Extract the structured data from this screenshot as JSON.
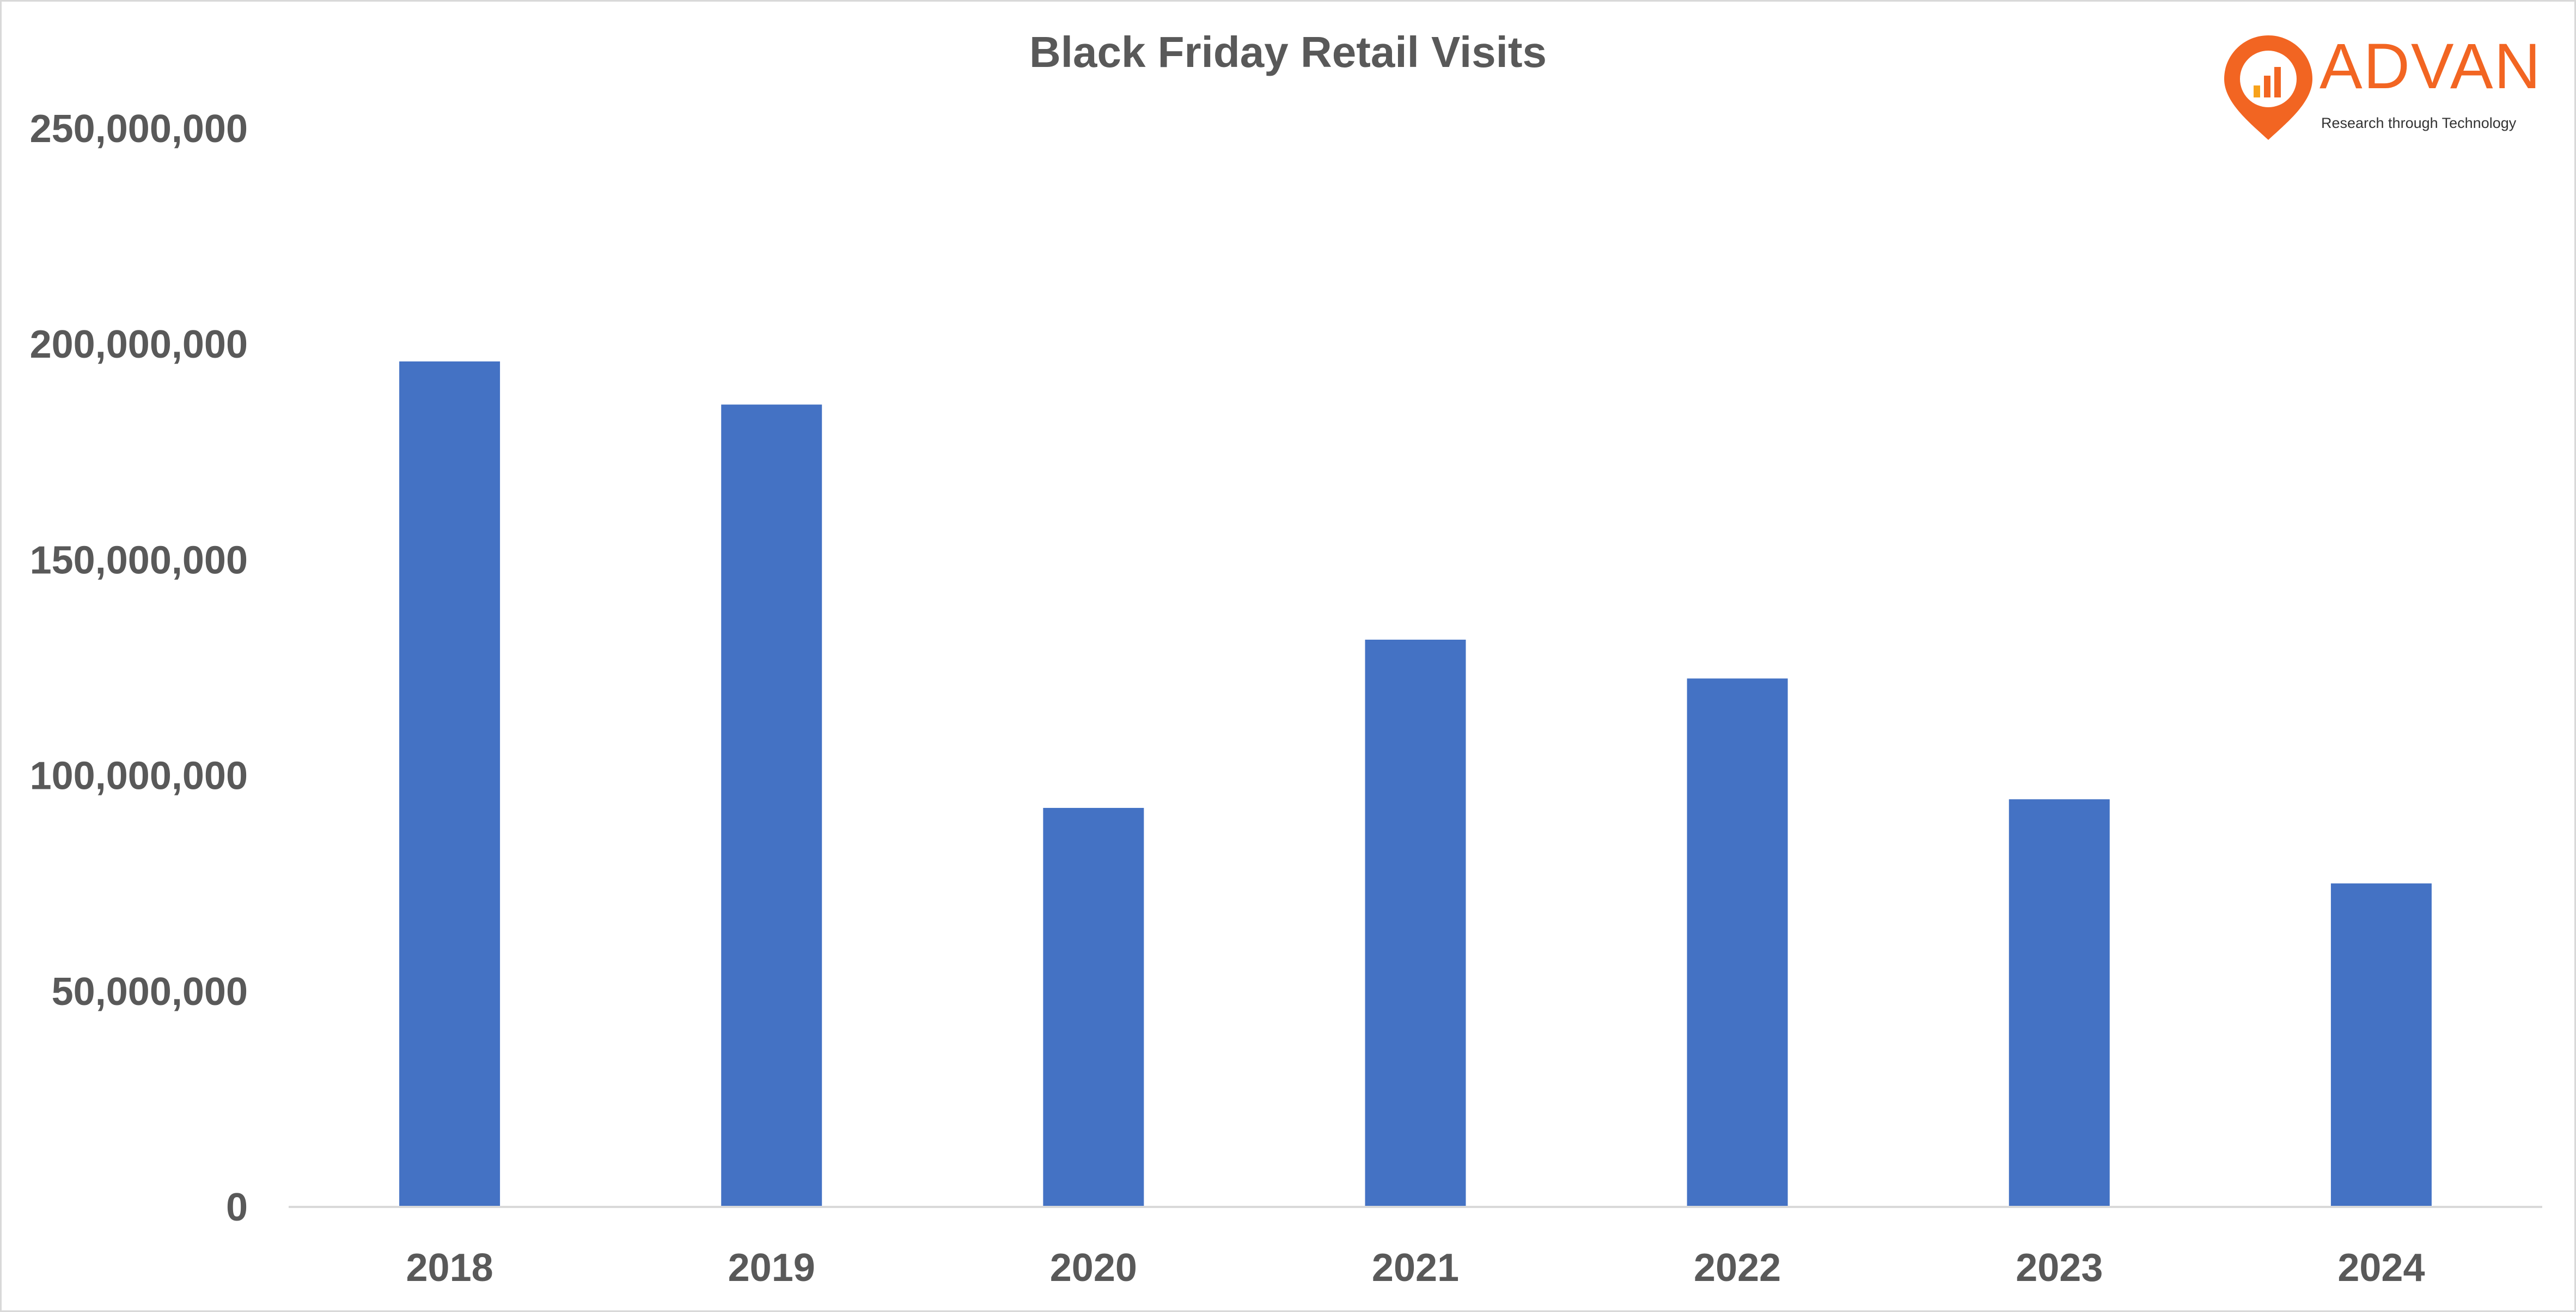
{
  "chart_data": {
    "type": "bar",
    "title": "Black Friday Retail Visits",
    "xlabel": "",
    "ylabel": "",
    "categories": [
      "2018",
      "2019",
      "2020",
      "2021",
      "2022",
      "2023",
      "2024"
    ],
    "values": [
      196000000,
      186000000,
      92500000,
      131500000,
      122500000,
      94500000,
      75000000
    ],
    "ylim": [
      0,
      250000000
    ],
    "yticks": [
      {
        "value": 0,
        "label": "0"
      },
      {
        "value": 50000000,
        "label": "50,000,000"
      },
      {
        "value": 100000000,
        "label": "100,000,000"
      },
      {
        "value": 150000000,
        "label": "150,000,000"
      },
      {
        "value": 200000000,
        "label": "200,000,000"
      },
      {
        "value": 250000000,
        "label": "250,000,000"
      }
    ],
    "grid": false,
    "legend": "none"
  },
  "colors": {
    "bar": "#4472c4",
    "text": "#595959",
    "axis": "#d9d9d9",
    "brand": "#f26522"
  },
  "logo": {
    "wordmark": "ADVAN",
    "tagline": "Research through Technology",
    "icon": "map-pin-bar-chart-icon"
  }
}
